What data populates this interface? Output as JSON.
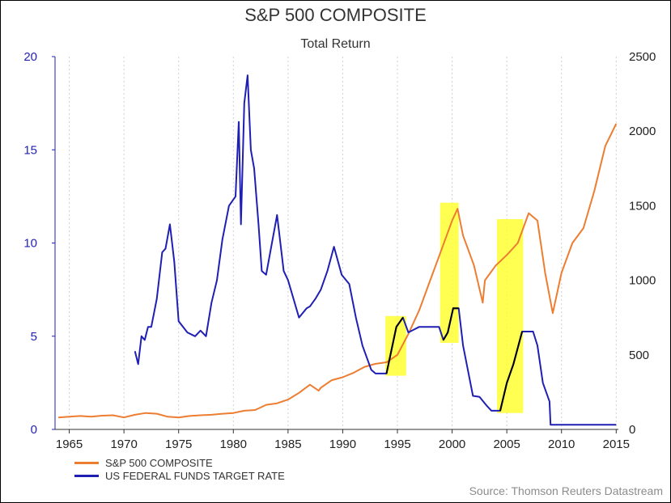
{
  "chart_data": {
    "type": "line",
    "title": "S&P 500 COMPOSITE",
    "subtitle": "Total Return",
    "source": "Source: Thomson Reuters Datastream",
    "x_ticks": [
      1965,
      1970,
      1975,
      1980,
      1985,
      1990,
      1995,
      2000,
      2005,
      2010,
      2015
    ],
    "xlim": [
      1963.7,
      2015.2
    ],
    "y_left": {
      "ylim": [
        0,
        20
      ],
      "ticks": [
        0,
        5,
        10,
        15,
        20
      ]
    },
    "y_right": {
      "ylim": [
        0,
        2500
      ],
      "ticks": [
        0,
        500,
        1000,
        1500,
        2000,
        2500
      ]
    },
    "grid": "vertical dashed",
    "legend_position": "bottom-left",
    "highlights": [
      {
        "x": [
          1993.9,
          1995.8
        ],
        "y_right": [
          360,
          760
        ]
      },
      {
        "x": [
          1998.9,
          2000.6
        ],
        "y_right": [
          580,
          1520
        ]
      },
      {
        "x": [
          2004.1,
          2006.5
        ],
        "y_right": [
          110,
          1410
        ]
      }
    ],
    "series": [
      {
        "name": "S&P 500 COMPOSITE",
        "axis": "right",
        "color": "#ed7d31",
        "x": [
          1964,
          1965,
          1966,
          1967,
          1968,
          1969,
          1970,
          1971,
          1972,
          1973,
          1974,
          1975,
          1976,
          1977,
          1978,
          1979,
          1980,
          1981,
          1982,
          1983,
          1984,
          1985,
          1986,
          1987,
          1987.8,
          1988,
          1989,
          1990,
          1991,
          1992,
          1993,
          1994,
          1995,
          1996,
          1997,
          1998,
          1999,
          2000,
          2000.5,
          2001,
          2002,
          2002.8,
          2003,
          2004,
          2005,
          2006,
          2007,
          2007.8,
          2008.5,
          2009.2,
          2010,
          2011,
          2012,
          2013,
          2014,
          2015
        ],
        "y": [
          80,
          85,
          90,
          85,
          92,
          95,
          80,
          98,
          110,
          105,
          85,
          80,
          90,
          95,
          98,
          105,
          110,
          125,
          130,
          165,
          175,
          200,
          245,
          300,
          260,
          280,
          330,
          350,
          380,
          420,
          440,
          450,
          500,
          640,
          800,
          1000,
          1200,
          1400,
          1480,
          1300,
          1100,
          850,
          1000,
          1100,
          1170,
          1250,
          1450,
          1400,
          1050,
          780,
          1050,
          1250,
          1350,
          1600,
          1900,
          2050
        ]
      },
      {
        "name": "US FEDERAL FUNDS TARGET RATE",
        "axis": "left",
        "color": "#1f1fb4",
        "x": [
          1971,
          1971.3,
          1971.6,
          1971.9,
          1972.2,
          1972.5,
          1973,
          1973.5,
          1973.8,
          1974.2,
          1974.6,
          1975,
          1975.8,
          1976.5,
          1977,
          1977.5,
          1978,
          1978.5,
          1979,
          1979.6,
          1980.2,
          1980.5,
          1980.7,
          1981,
          1981.3,
          1981.6,
          1981.9,
          1982.3,
          1982.6,
          1983,
          1984,
          1984.6,
          1985,
          1986,
          1986.7,
          1987,
          1987.5,
          1988,
          1988.6,
          1989.2,
          1989.9,
          1990.6,
          1991.2,
          1991.8,
          1992.6,
          1993,
          1994,
          1994.9,
          1995.5,
          1996,
          1997,
          1998.8,
          1999.2,
          1999.6,
          2000.1,
          2000.6,
          2001,
          2001.5,
          2001.9,
          2002.5,
          2003.2,
          2003.6,
          2004.4,
          2005,
          2005.6,
          2006.4,
          2007.4,
          2007.8,
          2008.3,
          2008.9,
          2009,
          2015
        ],
        "y": [
          4.2,
          3.5,
          5,
          4.8,
          5.5,
          5.5,
          7,
          9.5,
          9.7,
          11,
          9,
          5.8,
          5.2,
          5,
          5.3,
          5,
          6.8,
          8,
          10.2,
          12,
          12.5,
          16.5,
          11,
          17.5,
          19,
          15,
          14,
          11,
          8.5,
          8.3,
          11.5,
          8.5,
          8,
          6,
          6.5,
          6.6,
          7,
          7.5,
          8.5,
          9.8,
          8.3,
          7.8,
          6,
          4.5,
          3.2,
          3,
          3,
          5.5,
          6,
          5.2,
          5.5,
          5.5,
          4.8,
          5.2,
          6.5,
          6.5,
          4.5,
          3,
          1.8,
          1.75,
          1.25,
          1,
          1,
          2.5,
          3.5,
          5.25,
          5.25,
          4.5,
          2.5,
          1.5,
          0.25,
          0.25
        ]
      }
    ]
  }
}
